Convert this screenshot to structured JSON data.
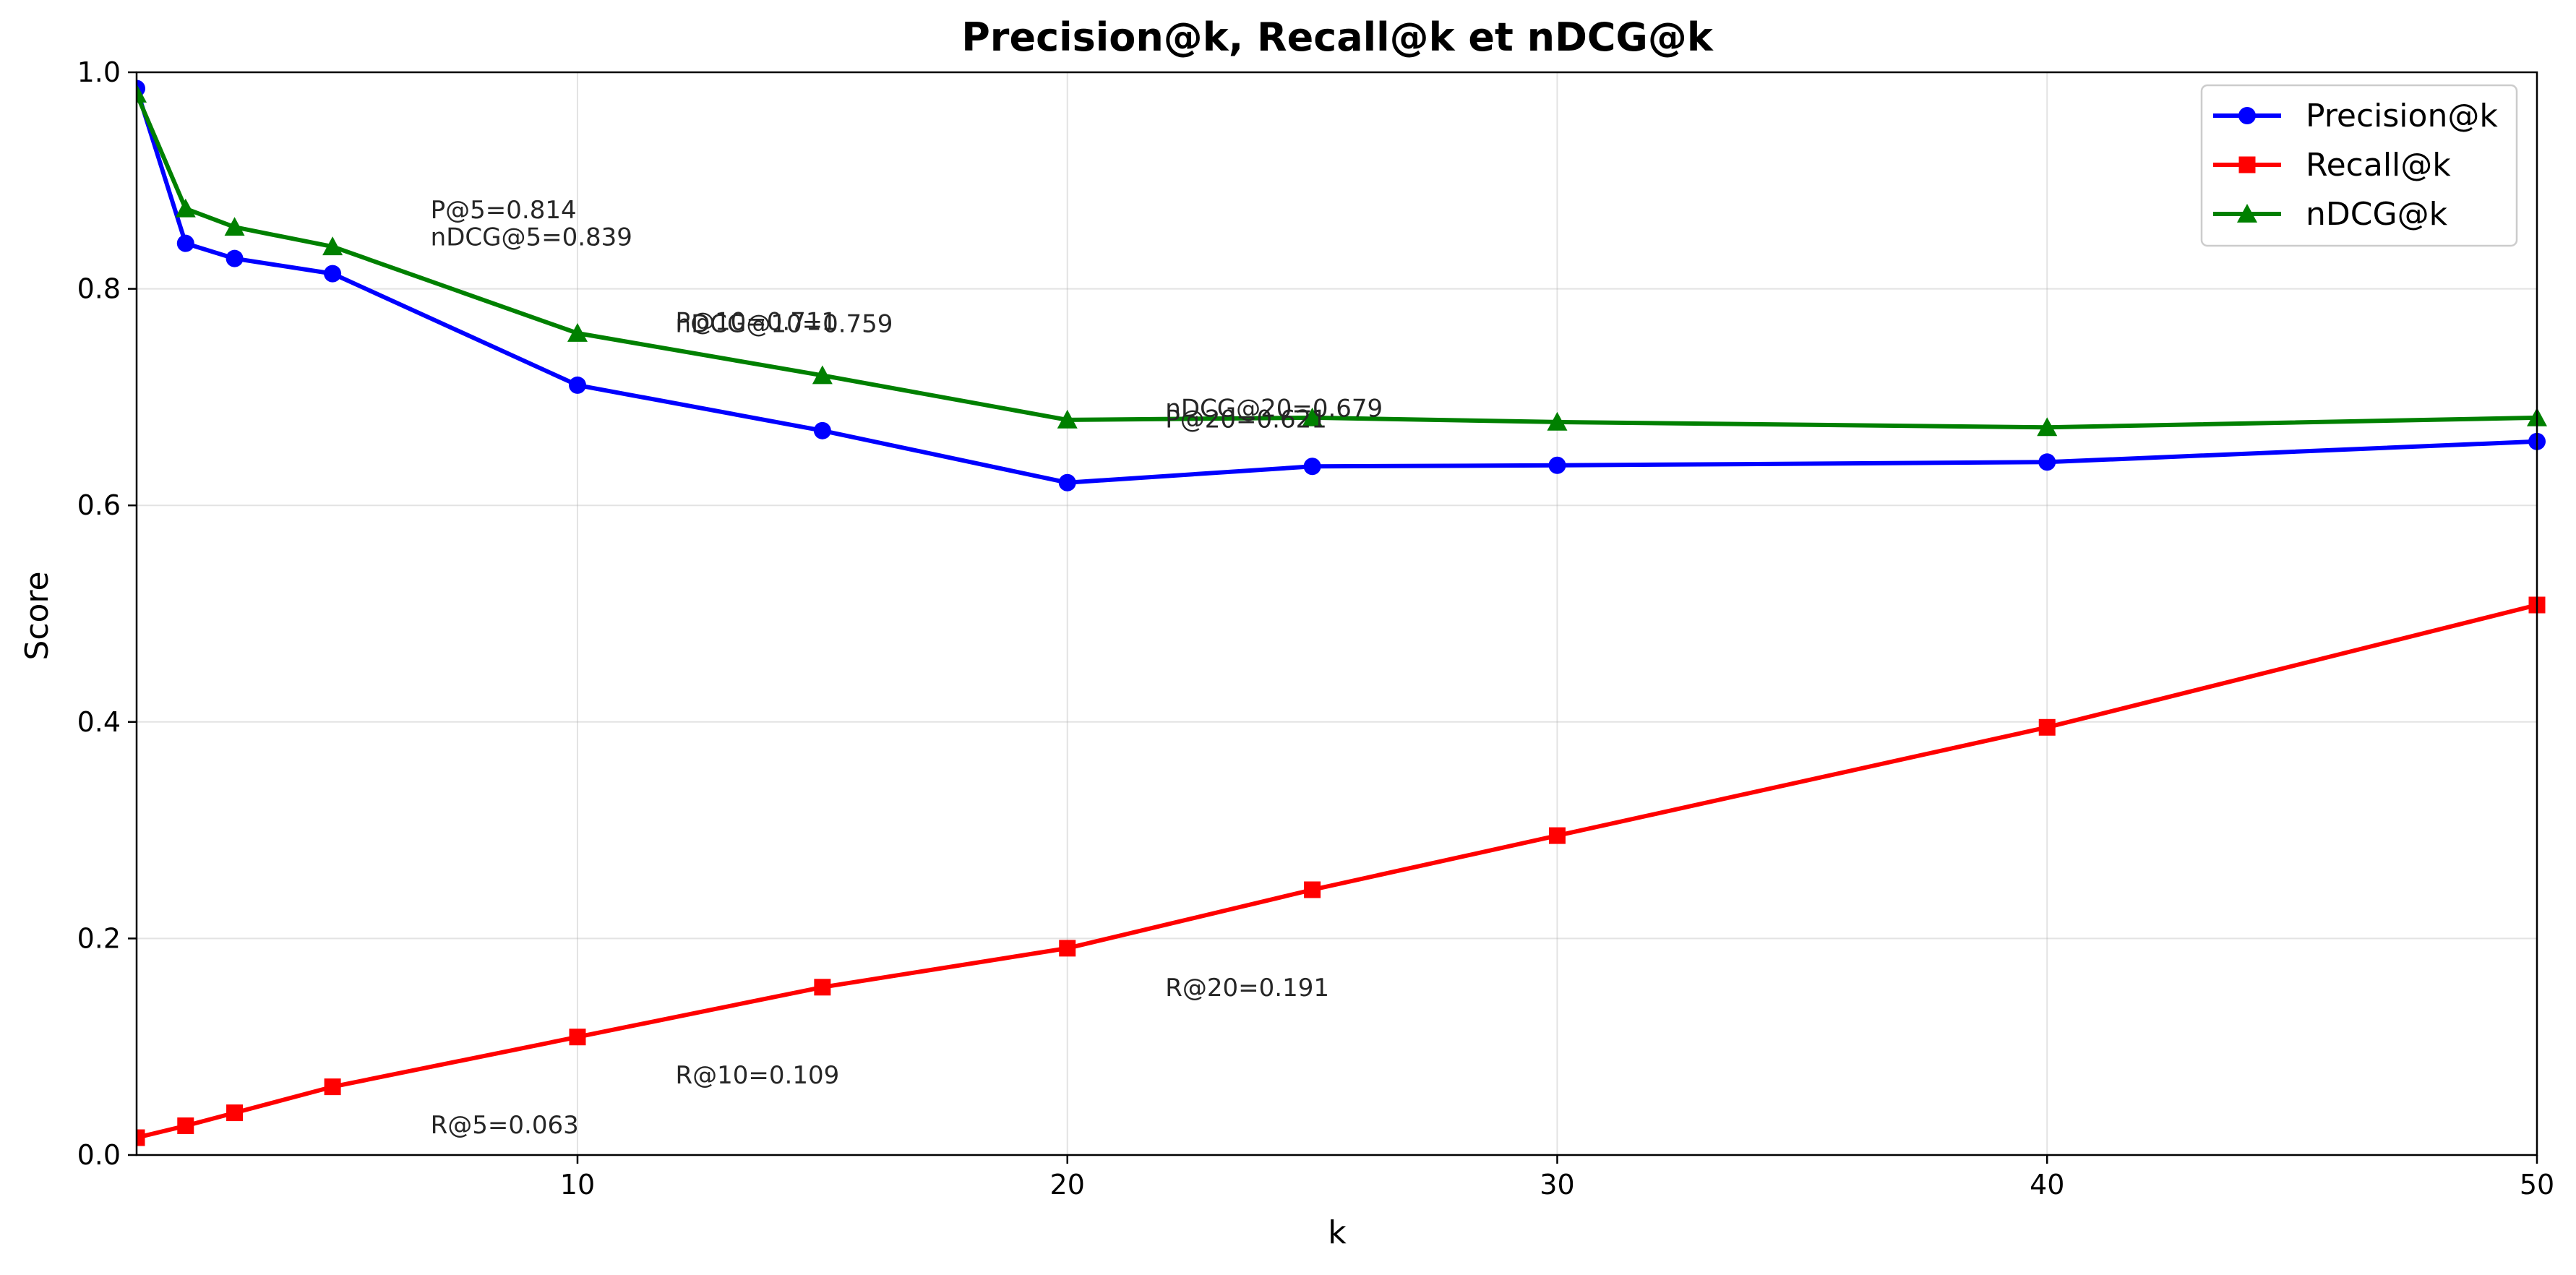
{
  "chart_data": {
    "type": "line",
    "title": "Precision@k, Recall@k et nDCG@k",
    "xlabel": "k",
    "ylabel": "Score",
    "xlim": [
      1,
      50
    ],
    "ylim": [
      0.0,
      1.0
    ],
    "xticks": [
      10,
      20,
      30,
      40,
      50
    ],
    "yticks": [
      0.0,
      0.2,
      0.4,
      0.6,
      0.8,
      1.0
    ],
    "xtick_labels": [
      "10",
      "20",
      "30",
      "40",
      "50"
    ],
    "ytick_labels": [
      "0.0",
      "0.2",
      "0.4",
      "0.6",
      "0.8",
      "1.0"
    ],
    "grid": true,
    "legend": "top-right",
    "series": [
      {
        "name": "Precision@k",
        "color": "#0000ff",
        "marker": "circle",
        "x": [
          1,
          2,
          3,
          5,
          10,
          15,
          20,
          25,
          30,
          40,
          50
        ],
        "y": [
          0.985,
          0.842,
          0.828,
          0.814,
          0.711,
          0.669,
          0.621,
          0.636,
          0.637,
          0.64,
          0.659
        ]
      },
      {
        "name": "Recall@k",
        "color": "#ff0000",
        "marker": "square",
        "x": [
          1,
          2,
          3,
          5,
          10,
          15,
          20,
          25,
          30,
          40,
          50
        ],
        "y": [
          0.016,
          0.027,
          0.039,
          0.063,
          0.109,
          0.155,
          0.191,
          0.245,
          0.295,
          0.395,
          0.508
        ]
      },
      {
        "name": "nDCG@k",
        "color": "#008000",
        "marker": "triangle",
        "x": [
          1,
          2,
          3,
          5,
          10,
          15,
          20,
          25,
          30,
          40,
          50
        ],
        "y": [
          0.98,
          0.874,
          0.857,
          0.839,
          0.759,
          0.72,
          0.679,
          0.681,
          0.677,
          0.672,
          0.681
        ]
      }
    ],
    "annotations": [
      {
        "text": "P@5=0.814",
        "x": 7,
        "y": 0.865
      },
      {
        "text": "nDCG@5=0.839",
        "x": 7,
        "y": 0.84
      },
      {
        "text": "P@10=0.711",
        "x": 12,
        "y": 0.762
      },
      {
        "text": "nDCG@10=0.759",
        "x": 12,
        "y": 0.76
      },
      {
        "text": "nDCG@20=0.679",
        "x": 22,
        "y": 0.682
      },
      {
        "text": "P@20=0.621",
        "x": 22,
        "y": 0.672
      },
      {
        "text": "R@20=0.191",
        "x": 22,
        "y": 0.147
      },
      {
        "text": "R@10=0.109",
        "x": 12,
        "y": 0.066
      },
      {
        "text": "R@5=0.063",
        "x": 7,
        "y": 0.02
      }
    ]
  }
}
